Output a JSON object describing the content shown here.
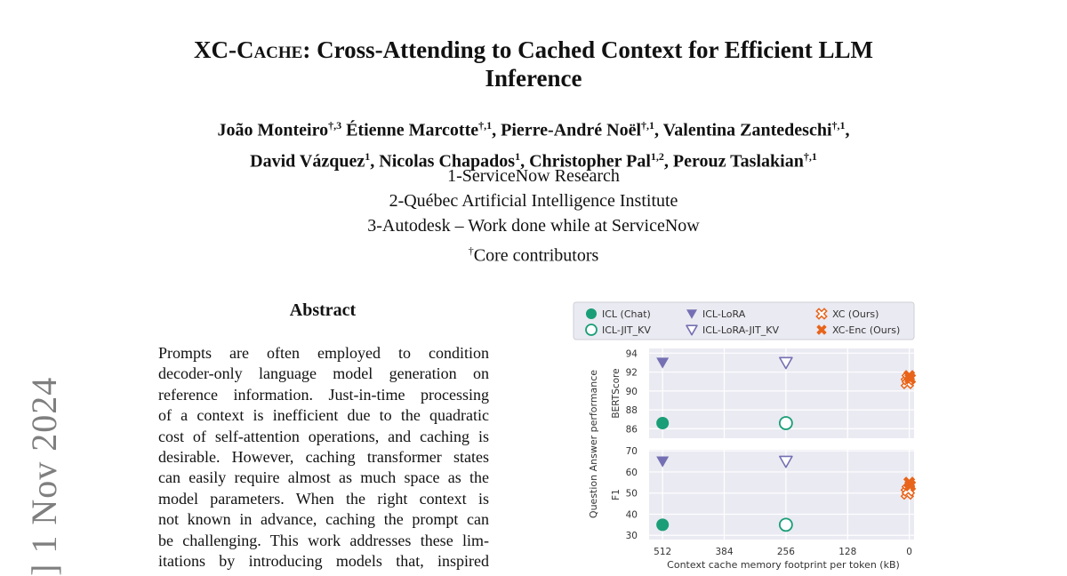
{
  "side_stamp": "] 1 Nov 2024",
  "title": {
    "prefix_sc": "XC-Cache",
    "rest": ": Cross-Attending to Cached Context for Efficient LLM",
    "line2": "Inference"
  },
  "authors": {
    "line1": [
      {
        "name": "João Monteiro",
        "sup": "†,3"
      },
      {
        "name": " Étienne Marcotte",
        "sup": "†,1"
      },
      {
        "name": ", Pierre-André Noël",
        "sup": "†,1"
      },
      {
        "name": ", Valentina Zantedeschi",
        "sup": "†,1"
      },
      {
        "name": ",",
        "sup": ""
      }
    ],
    "line2": [
      {
        "name": "David Vázquez",
        "sup": "1"
      },
      {
        "name": ", Nicolas Chapados",
        "sup": "1"
      },
      {
        "name": ", Christopher Pal",
        "sup": "1,2"
      },
      {
        "name": ", Perouz Taslakian",
        "sup": "†,1"
      }
    ]
  },
  "affiliations": [
    "1-ServiceNow Research",
    "2-Québec Artificial Intelligence Institute",
    "3-Autodesk – Work done while at ServiceNow"
  ],
  "core_note": {
    "dagger": "†",
    "text": "Core contributors"
  },
  "abstract": {
    "heading": "Abstract",
    "lines": [
      "Prompts are often employed to condition",
      "decoder-only language model generation on",
      "reference information. Just-in-time processing",
      "of a context is inefficient due to the quadratic",
      "cost of self-attention operations, and caching is",
      "desirable. However, caching transformer states",
      "can easily require almost as much space as the",
      "model parameters. When the right context is",
      "not known in advance, caching the prompt can",
      "be challenging. This work addresses these lim-",
      "itations by introducing models that, inspired"
    ]
  },
  "chart_data": {
    "type": "scatter",
    "legend": [
      {
        "label": "ICL (Chat)",
        "marker": "circle-filled",
        "color": "#1a9e77"
      },
      {
        "label": "ICL-LoRA",
        "marker": "triangle-filled",
        "color": "#7570b3"
      },
      {
        "label": "XC (Ours)",
        "marker": "x-open",
        "color": "#e8641a"
      },
      {
        "label": "ICL-JIT_KV",
        "marker": "circle-open",
        "color": "#1a9e77"
      },
      {
        "label": "ICL-LoRA-JIT_KV",
        "marker": "triangle-open",
        "color": "#7570b3"
      },
      {
        "label": "XC-Enc (Ours)",
        "marker": "x-filled",
        "color": "#e8641a"
      }
    ],
    "shared_ylabel": "Question Answer performance",
    "xlabel": "Context cache memory footprint per token (kB)",
    "xticks": [
      512,
      384,
      256,
      128,
      0
    ],
    "xlim": [
      540,
      -10
    ],
    "x_reversed": true,
    "panels": [
      {
        "ylabel": "BERTScore",
        "ylim": [
          85,
          94.5
        ],
        "yticks": [
          86,
          88,
          90,
          92,
          94
        ],
        "points": [
          {
            "series": "ICL (Chat)",
            "x": 512,
            "y": 86.6
          },
          {
            "series": "ICL-LoRA",
            "x": 512,
            "y": 93.0
          },
          {
            "series": "ICL-JIT_KV",
            "x": 256,
            "y": 86.6
          },
          {
            "series": "ICL-LoRA-JIT_KV",
            "x": 256,
            "y": 93.0
          },
          {
            "series": "XC (Ours)",
            "x": 4,
            "y": 90.9
          },
          {
            "series": "XC (Ours)",
            "x": 2,
            "y": 91.3
          },
          {
            "series": "XC-Enc (Ours)",
            "x": 0,
            "y": 91.6
          },
          {
            "series": "XC-Enc (Ours)",
            "x": -2,
            "y": 91.3
          }
        ]
      },
      {
        "ylabel": "F1",
        "ylim": [
          28,
          70.5
        ],
        "yticks": [
          30,
          40,
          50,
          60,
          70
        ],
        "points": [
          {
            "series": "ICL (Chat)",
            "x": 512,
            "y": 35.0
          },
          {
            "series": "ICL-LoRA",
            "x": 512,
            "y": 65.0
          },
          {
            "series": "ICL-JIT_KV",
            "x": 256,
            "y": 35.0
          },
          {
            "series": "ICL-LoRA-JIT_KV",
            "x": 256,
            "y": 65.0
          },
          {
            "series": "XC (Ours)",
            "x": 4,
            "y": 50.0
          },
          {
            "series": "XC (Ours)",
            "x": 2,
            "y": 51.5
          },
          {
            "series": "XC-Enc (Ours)",
            "x": 0,
            "y": 55.0
          },
          {
            "series": "XC-Enc (Ours)",
            "x": -2,
            "y": 53.5
          }
        ]
      }
    ],
    "grid": true,
    "legend_position": "top"
  }
}
